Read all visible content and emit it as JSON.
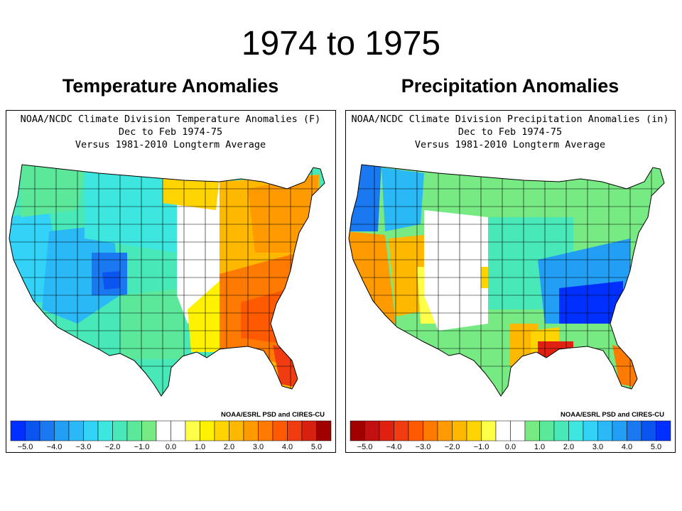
{
  "slide": {
    "title": "1974 to 1975"
  },
  "panels": {
    "temperature": {
      "heading": "Temperature Anomalies",
      "map_title_1": "NOAA/NCDC Climate Division Temperature Anomalies (F)",
      "map_title_2": "Dec to Feb 1974-75",
      "map_title_3": "Versus 1981-2010 Longterm Average",
      "credit": "NOAA/ESRL PSD and CIRES-CU",
      "scale": {
        "bins": 22,
        "ticks": [
          "-5.0",
          "-4.0",
          "-3.0",
          "-2.0",
          "-1.0",
          "0.0",
          "1.0",
          "2.0",
          "3.0",
          "4.0",
          "5.0"
        ],
        "colors": [
          "#0030ff",
          "#0a55f0",
          "#1a78f0",
          "#239ef5",
          "#2ab8f7",
          "#33d2f7",
          "#3ee6e0",
          "#48e8b8",
          "#5ce89a",
          "#78ea84",
          "#ffffff",
          "#ffffff",
          "#ffff4a",
          "#fff200",
          "#ffd400",
          "#ffb800",
          "#ff9a00",
          "#ff7a00",
          "#ff5a00",
          "#f03c10",
          "#d82010",
          "#a00000"
        ]
      },
      "regions": [
        {
          "name": "pacific-northwest",
          "anomaly": "-1.0 to -2.0",
          "color": "#5ce89a"
        },
        {
          "name": "california",
          "anomaly": "-2.0 to -3.0",
          "color": "#33d2f7"
        },
        {
          "name": "southwest",
          "anomaly": "-2.0 to -3.0",
          "color": "#2ab8f7"
        },
        {
          "name": "colorado",
          "anomaly": "-4.0 to -5.0",
          "color": "#0a55f0"
        },
        {
          "name": "northern-plains",
          "anomaly": "-1.0 to -3.0",
          "color": "#3ee6e0"
        },
        {
          "name": "southern-plains",
          "anomaly": "-1.0 to -2.0",
          "color": "#5ce89a"
        },
        {
          "name": "great-lakes",
          "anomaly": "0.0 to 1.0",
          "color": "#ffffff"
        },
        {
          "name": "ohio-valley",
          "anomaly": "1.0 to 2.0",
          "color": "#ffd400"
        },
        {
          "name": "southeast",
          "anomaly": "3.0 to 4.0",
          "color": "#ff5a00"
        },
        {
          "name": "northeast",
          "anomaly": "2.0 to 3.0",
          "color": "#ff9a00"
        }
      ]
    },
    "precipitation": {
      "heading": "Precipitation Anomalies",
      "map_title_1": "NOAA/NCDC Climate Division Precipitation Anomalies (in)",
      "map_title_2": "Dec to Feb 1974-75",
      "map_title_3": "Versus 1981-2010 Longterm Average",
      "credit": "NOAA/ESRL PSD and CIRES-CU",
      "scale": {
        "bins": 22,
        "ticks": [
          "-5.0",
          "-4.0",
          "-3.0",
          "-2.0",
          "-1.0",
          "0.0",
          "1.0",
          "2.0",
          "3.0",
          "4.0",
          "5.0"
        ],
        "colors": [
          "#a00000",
          "#c01010",
          "#e02010",
          "#f03c10",
          "#ff5a00",
          "#ff7a00",
          "#ff9a00",
          "#ffb800",
          "#ffd400",
          "#ffff4a",
          "#ffffff",
          "#ffffff",
          "#78ea84",
          "#5ce89a",
          "#48e8b8",
          "#3ee6e0",
          "#33d2f7",
          "#2ab8f7",
          "#239ef5",
          "#1a78f0",
          "#0a55f0",
          "#0030ff"
        ]
      },
      "regions": [
        {
          "name": "pacific-northwest",
          "anomaly": "3.0 to 5.0",
          "color": "#1a78f0"
        },
        {
          "name": "california",
          "anomaly": "-1.0 to -3.0",
          "color": "#ff9a00"
        },
        {
          "name": "southwest",
          "anomaly": "-1.0 to -2.0",
          "color": "#ffd400"
        },
        {
          "name": "rockies",
          "anomaly": "0.0 to 1.0",
          "color": "#ffffff"
        },
        {
          "name": "northern-plains",
          "anomaly": "0.0 to 2.0",
          "color": "#78ea84"
        },
        {
          "name": "midwest",
          "anomaly": "1.0 to 3.0",
          "color": "#48e8b8"
        },
        {
          "name": "tennessee-valley",
          "anomaly": "4.0 to 5.0",
          "color": "#0030ff"
        },
        {
          "name": "gulf-coast-louisiana",
          "anomaly": "-3.0 to -5.0",
          "color": "#e02010"
        },
        {
          "name": "florida",
          "anomaly": "-1.0 to -3.0",
          "color": "#ff7a00"
        },
        {
          "name": "northeast",
          "anomaly": "0.0 to 2.0",
          "color": "#78ea84"
        }
      ]
    }
  }
}
